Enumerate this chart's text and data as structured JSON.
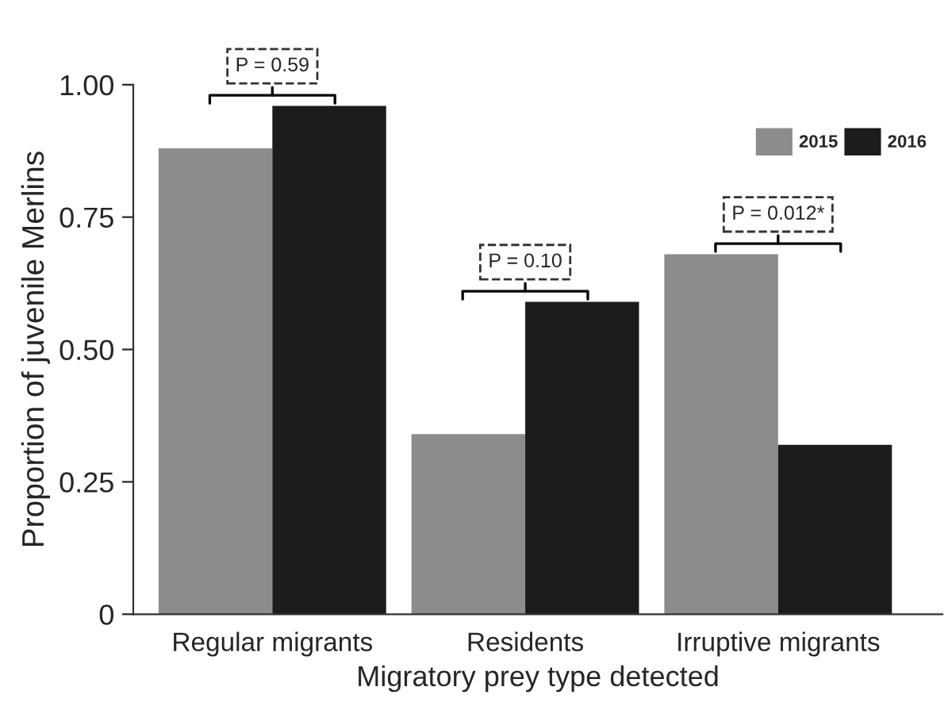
{
  "chart_data": {
    "type": "bar",
    "xlabel": "Migratory prey type detected",
    "ylabel": "Proportion of juvenile Merlins",
    "categories": [
      "Regular migrants",
      "Residents",
      "Irruptive migrants"
    ],
    "series": [
      {
        "name": "2015",
        "color": "#8c8c8c",
        "values": [
          0.88,
          0.34,
          0.68
        ]
      },
      {
        "name": "2016",
        "color": "#1c1c1c",
        "values": [
          0.96,
          0.59,
          0.32
        ]
      }
    ],
    "ylim": [
      0,
      1
    ],
    "yticks": [
      {
        "value": 0,
        "label": "0"
      },
      0.25,
      {
        "value": 0.5,
        "label": "0.50"
      },
      0.75,
      {
        "value": 1,
        "label": "1.00"
      }
    ],
    "annotations": [
      "P = 0.59",
      "P = 0.10",
      "P = 0.012*"
    ],
    "grid": false,
    "legend": "top right"
  }
}
